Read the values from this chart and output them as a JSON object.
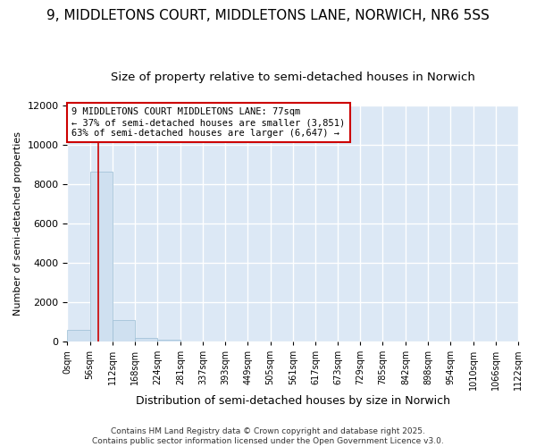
{
  "title": "9, MIDDLETONS COURT, MIDDLETONS LANE, NORWICH, NR6 5SS",
  "subtitle": "Size of property relative to semi-detached houses in Norwich",
  "xlabel": "Distribution of semi-detached houses by size in Norwich",
  "ylabel": "Number of semi-detached properties",
  "bin_edges": [
    0,
    56,
    112,
    168,
    224,
    281,
    337,
    393,
    449,
    505,
    561,
    617,
    673,
    729,
    785,
    842,
    898,
    954,
    1010,
    1066,
    1122
  ],
  "bar_heights": [
    600,
    8650,
    1100,
    200,
    100,
    0,
    0,
    0,
    0,
    0,
    0,
    0,
    0,
    0,
    0,
    0,
    0,
    0,
    0,
    0
  ],
  "bar_color": "#cfe0f0",
  "bar_edgecolor": "#9bbdd4",
  "property_size": 77,
  "red_line_color": "#cc0000",
  "ylim": [
    0,
    12000
  ],
  "yticks": [
    0,
    2000,
    4000,
    6000,
    8000,
    10000,
    12000
  ],
  "annotation_text": "9 MIDDLETONS COURT MIDDLETONS LANE: 77sqm\n← 37% of semi-detached houses are smaller (3,851)\n63% of semi-detached houses are larger (6,647) →",
  "annotation_box_color": "#ffffff",
  "annotation_border_color": "#cc0000",
  "footer_text": "Contains HM Land Registry data © Crown copyright and database right 2025.\nContains public sector information licensed under the Open Government Licence v3.0.",
  "fig_background_color": "#ffffff",
  "plot_background": "#dce8f5",
  "grid_color": "#ffffff",
  "title_fontsize": 11,
  "subtitle_fontsize": 9.5,
  "ylabel_fontsize": 8,
  "xlabel_fontsize": 9,
  "annotation_fontsize": 7.5,
  "footer_fontsize": 6.5,
  "ytick_fontsize": 8,
  "xtick_fontsize": 7
}
